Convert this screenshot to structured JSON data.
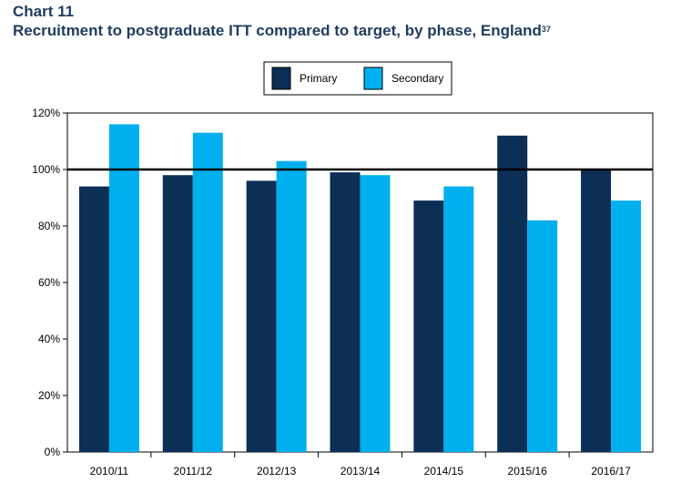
{
  "heading": {
    "chart_label": "Chart 11",
    "title": "Recruitment to postgraduate ITT compared to target, by phase, England",
    "footnote": "37"
  },
  "colors": {
    "primary": "#0b2f55",
    "secondary": "#00b0ee",
    "title": "#1f3c5e",
    "target_line": "#000000"
  },
  "chart_data": {
    "type": "bar",
    "categories": [
      "2010/11",
      "2011/12",
      "2012/13",
      "2013/14",
      "2014/15",
      "2015/16",
      "2016/17"
    ],
    "series": [
      {
        "name": "Primary",
        "color": "#0b2f55",
        "values": [
          94,
          98,
          96,
          99,
          89,
          112,
          100
        ]
      },
      {
        "name": "Secondary",
        "color": "#00b0ee",
        "values": [
          116,
          113,
          103,
          98,
          94,
          82,
          89
        ]
      }
    ],
    "ylim": [
      0,
      120
    ],
    "yticks": [
      0,
      20,
      40,
      60,
      80,
      100,
      120
    ],
    "ytick_labels": [
      "0%",
      "20%",
      "40%",
      "60%",
      "80%",
      "100%",
      "120%"
    ],
    "reference_line": 100,
    "legend_position": "top-center",
    "grid": false
  }
}
